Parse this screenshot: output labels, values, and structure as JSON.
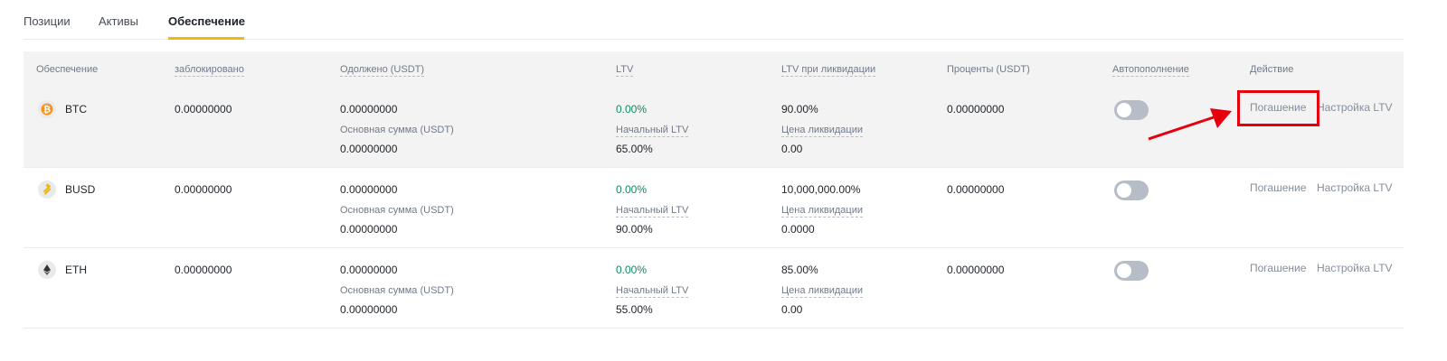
{
  "tabs": [
    {
      "label": "Позиции",
      "active": false
    },
    {
      "label": "Активы",
      "active": false
    },
    {
      "label": "Обеспечение",
      "active": true
    }
  ],
  "table": {
    "headers": {
      "collateral": "Обеспечение",
      "locked": "заблокировано",
      "borrowed": "Одолжено (USDT)",
      "ltv": "LTV",
      "liq_ltv": "LTV при ликвидации",
      "interest": "Проценты (USDT)",
      "autorefill": "Автопополнение",
      "action": "Действие"
    },
    "sub_labels": {
      "principal": "Основная сумма (USDT)",
      "initial_ltv": "Начальный LTV",
      "liq_price": "Цена ликвидации"
    },
    "actions": {
      "repay": "Погашение",
      "adjust_ltv": "Настройка LTV"
    },
    "rows": [
      {
        "coin": "BTC",
        "icon": "bitcoin-icon",
        "locked": "0.00000000",
        "borrowed": "0.00000000",
        "principal": "0.00000000",
        "ltv": "0.00%",
        "initial_ltv": "65.00%",
        "liq_ltv": "90.00%",
        "liq_price": "0.00",
        "interest": "0.00000000",
        "autorefill": false
      },
      {
        "coin": "BUSD",
        "icon": "busd-icon",
        "locked": "0.00000000",
        "borrowed": "0.00000000",
        "principal": "0.00000000",
        "ltv": "0.00%",
        "initial_ltv": "90.00%",
        "liq_ltv": "10,000,000.00%",
        "liq_price": "0.0000",
        "interest": "0.00000000",
        "autorefill": false
      },
      {
        "coin": "ETH",
        "icon": "ethereum-icon",
        "locked": "0.00000000",
        "borrowed": "0.00000000",
        "principal": "0.00000000",
        "ltv": "0.00%",
        "initial_ltv": "55.00%",
        "liq_ltv": "85.00%",
        "liq_price": "0.00",
        "interest": "0.00000000",
        "autorefill": false
      }
    ]
  },
  "colors": {
    "accent": "#f0b90b",
    "positive": "#0e8a5f",
    "annotation": "#e6000e"
  }
}
